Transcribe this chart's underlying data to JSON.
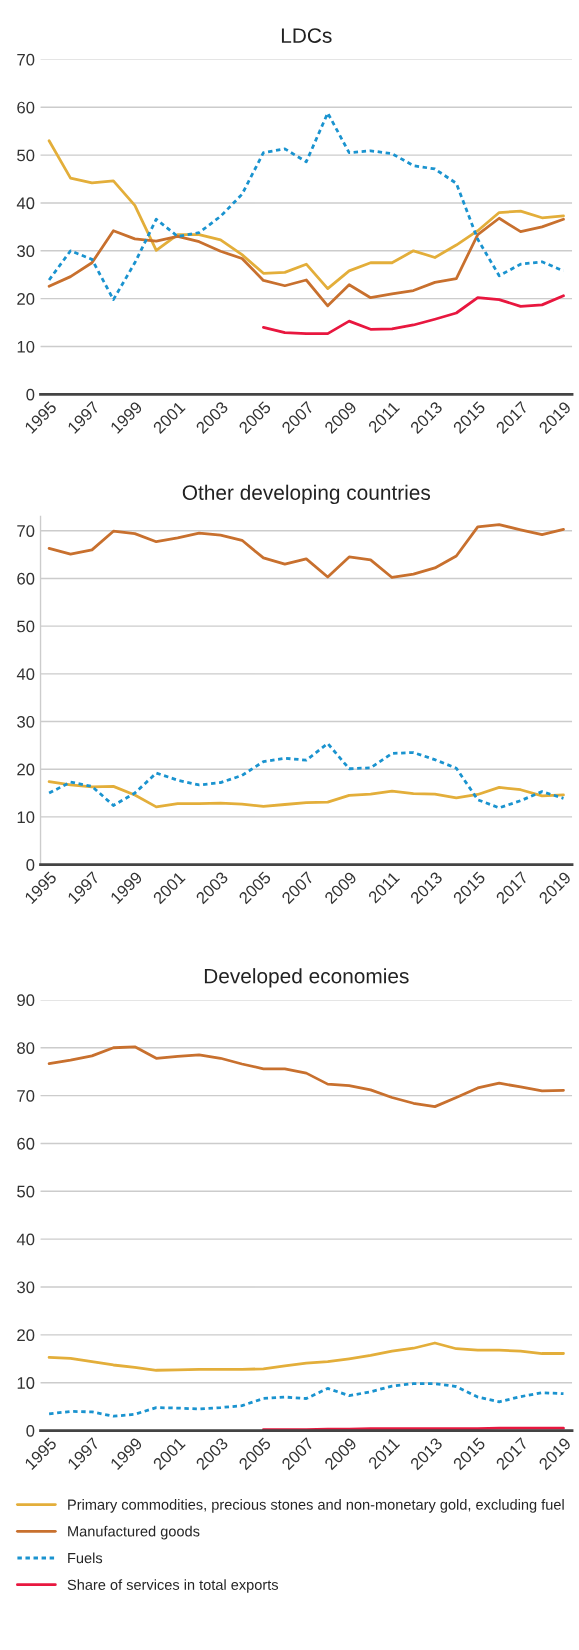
{
  "chart_data": [
    {
      "type": "line",
      "title": "LDCs",
      "x": [
        1995,
        1996,
        1997,
        1998,
        1999,
        2000,
        2001,
        2002,
        2003,
        2004,
        2005,
        2006,
        2007,
        2008,
        2009,
        2010,
        2011,
        2012,
        2013,
        2014,
        2015,
        2016,
        2017,
        2018,
        2019
      ],
      "xlim": [
        1994.6,
        2019.4
      ],
      "xticks": [
        1995,
        1997,
        1999,
        2001,
        2003,
        2005,
        2007,
        2009,
        2011,
        2013,
        2015,
        2017,
        2019
      ],
      "ylim": [
        0,
        70
      ],
      "yticks": [
        0,
        10,
        20,
        30,
        40,
        50,
        60,
        70
      ],
      "grid": "y",
      "series": [
        {
          "color": "#e3ae3a",
          "line_style": "solid",
          "values": [
            53,
            45.2,
            44.2,
            44.6,
            39.5,
            30.1,
            33.4,
            33.4,
            32.3,
            29.2,
            25.3,
            25.5,
            27.2,
            22.1,
            25.8,
            27.5,
            27.5,
            30.0,
            28.6,
            31.2,
            34.2,
            38.0,
            38.3,
            36.9,
            37.3
          ]
        },
        {
          "color": "#c8702e",
          "line_style": "solid",
          "values": [
            22.6,
            24.6,
            27.5,
            34.2,
            32.5,
            32.0,
            33.0,
            31.9,
            29.9,
            28.4,
            23.8,
            22.7,
            23.9,
            18.5,
            22.9,
            20.2,
            21.0,
            21.7,
            23.4,
            24.2,
            33.4,
            36.8,
            34.0,
            35.0,
            36.6
          ]
        },
        {
          "color": "#1a93cf",
          "line_style": "dotted",
          "values": [
            23.9,
            30.0,
            28.2,
            19.8,
            27.5,
            36.6,
            33.0,
            33.8,
            37.2,
            41.8,
            50.5,
            51.3,
            48.6,
            58.8,
            50.5,
            50.9,
            50.3,
            47.8,
            47.1,
            44.1,
            32.4,
            24.8,
            27.2,
            27.7,
            25.8
          ]
        },
        {
          "color": "#e8173f",
          "line_style": "solid",
          "values": [
            null,
            null,
            null,
            null,
            null,
            null,
            null,
            null,
            null,
            null,
            14.0,
            12.9,
            12.7,
            12.7,
            15.3,
            13.6,
            13.7,
            14.5,
            15.7,
            17.0,
            20.2,
            19.8,
            18.4,
            18.7,
            20.6
          ]
        }
      ]
    },
    {
      "type": "line",
      "title": "Other developing countries",
      "x": [
        1995,
        1996,
        1997,
        1998,
        1999,
        2000,
        2001,
        2002,
        2003,
        2004,
        2005,
        2006,
        2007,
        2008,
        2009,
        2010,
        2011,
        2012,
        2013,
        2014,
        2015,
        2016,
        2017,
        2018,
        2019
      ],
      "xlim": [
        1994.6,
        2019.4
      ],
      "xticks": [
        1995,
        1997,
        1999,
        2001,
        2003,
        2005,
        2007,
        2009,
        2011,
        2013,
        2015,
        2017,
        2019
      ],
      "ylim": [
        0,
        73
      ],
      "yticks": [
        0,
        10,
        20,
        30,
        40,
        50,
        60,
        70
      ],
      "grid": "y",
      "series": [
        {
          "color": "#e3ae3a",
          "line_style": "solid",
          "values": [
            17.4,
            16.7,
            16.3,
            16.4,
            14.6,
            12.1,
            12.8,
            12.8,
            12.9,
            12.7,
            12.2,
            12.6,
            13.0,
            13.1,
            14.5,
            14.8,
            15.4,
            14.9,
            14.8,
            14.0,
            14.7,
            16.2,
            15.7,
            14.4,
            14.6
          ]
        },
        {
          "color": "#c8702e",
          "line_style": "solid",
          "values": [
            66.3,
            65.1,
            66.0,
            69.9,
            69.4,
            67.7,
            68.5,
            69.5,
            69.1,
            68.0,
            64.3,
            63.0,
            64.1,
            60.3,
            64.5,
            63.9,
            60.2,
            60.9,
            62.2,
            64.7,
            70.8,
            71.3,
            70.2,
            69.2,
            70.3
          ]
        },
        {
          "color": "#1a93cf",
          "line_style": "dotted",
          "values": [
            15.0,
            17.3,
            16.4,
            12.4,
            15.0,
            19.2,
            17.7,
            16.7,
            17.2,
            18.7,
            21.6,
            22.3,
            21.9,
            25.4,
            20.1,
            20.3,
            23.3,
            23.5,
            22.0,
            20.2,
            13.6,
            11.9,
            13.4,
            15.3,
            13.9
          ]
        }
      ]
    },
    {
      "type": "line",
      "title": "Developed economies",
      "x": [
        1995,
        1996,
        1997,
        1998,
        1999,
        2000,
        2001,
        2002,
        2003,
        2004,
        2005,
        2006,
        2007,
        2008,
        2009,
        2010,
        2011,
        2012,
        2013,
        2014,
        2015,
        2016,
        2017,
        2018,
        2019
      ],
      "xlim": [
        1994.6,
        2019.4
      ],
      "xticks": [
        1995,
        1997,
        1999,
        2001,
        2003,
        2005,
        2007,
        2009,
        2011,
        2013,
        2015,
        2017,
        2019
      ],
      "ylim": [
        0,
        90
      ],
      "yticks": [
        0,
        10,
        20,
        30,
        40,
        50,
        60,
        70,
        80,
        90
      ],
      "grid": "y",
      "legend": "bottom",
      "series": [
        {
          "name": "Primary commodities, precious stones and non-monetary gold, excluding fuel",
          "color": "#e3ae3a",
          "line_style": "solid",
          "values": [
            15.3,
            15.1,
            14.4,
            13.7,
            13.2,
            12.6,
            12.7,
            12.8,
            12.8,
            12.8,
            12.9,
            13.5,
            14.1,
            14.4,
            15.0,
            15.7,
            16.6,
            17.2,
            18.3,
            17.1,
            16.8,
            16.8,
            16.6,
            16.1,
            16.1
          ]
        },
        {
          "name": "Manufactured goods",
          "color": "#c8702e",
          "line_style": "solid",
          "values": [
            76.7,
            77.4,
            78.3,
            80.0,
            80.2,
            77.8,
            78.2,
            78.5,
            77.8,
            76.6,
            75.6,
            75.6,
            74.7,
            72.4,
            72.1,
            71.2,
            69.6,
            68.4,
            67.7,
            69.6,
            71.6,
            72.6,
            71.8,
            71.0,
            71.1
          ]
        },
        {
          "name": "Fuels",
          "color": "#1a93cf",
          "line_style": "dotted",
          "values": [
            3.5,
            4.0,
            3.9,
            3.0,
            3.4,
            4.8,
            4.7,
            4.5,
            4.8,
            5.2,
            6.7,
            7.0,
            6.7,
            8.8,
            7.3,
            8.1,
            9.3,
            9.8,
            9.8,
            9.2,
            7.0,
            6.0,
            7.1,
            7.9,
            7.7
          ]
        },
        {
          "name": "Share of services in total exports",
          "color": "#e8173f",
          "line_style": "solid",
          "values": [
            null,
            null,
            null,
            null,
            null,
            null,
            null,
            null,
            null,
            null,
            0.2,
            0.2,
            0.2,
            0.3,
            0.3,
            0.4,
            0.4,
            0.4,
            0.4,
            0.4,
            0.4,
            0.5,
            0.5,
            0.5,
            0.5
          ]
        }
      ]
    }
  ]
}
